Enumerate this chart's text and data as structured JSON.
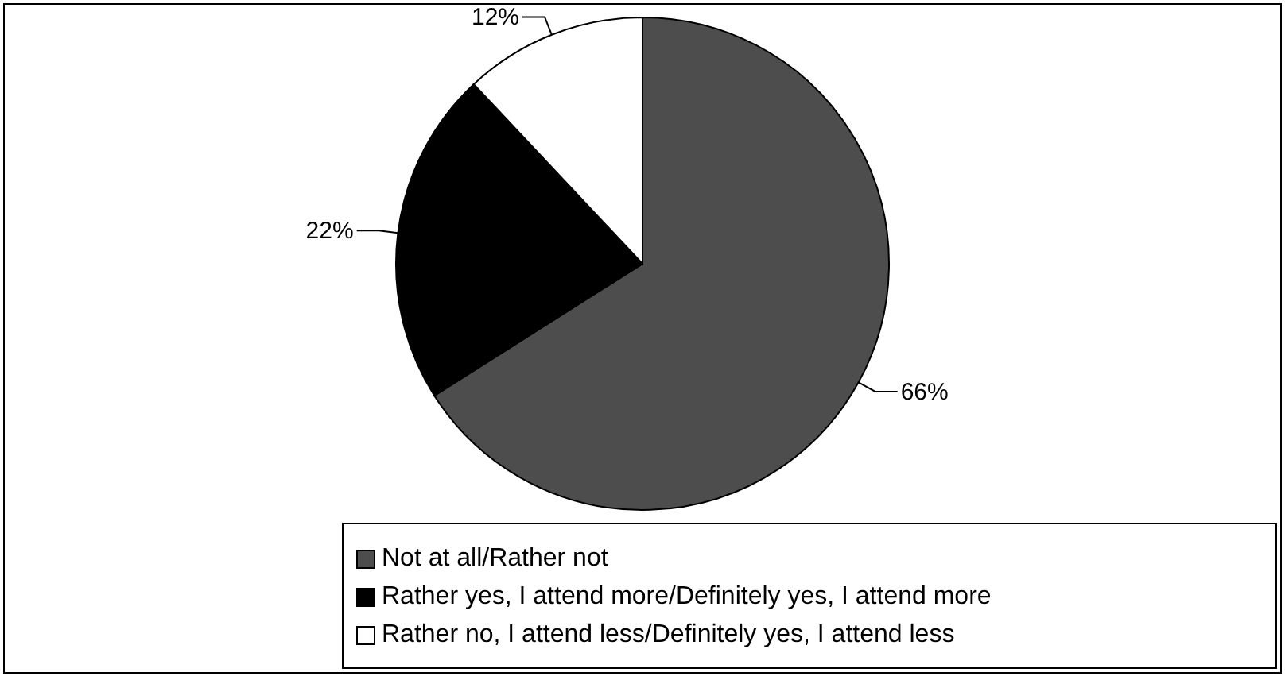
{
  "chart_data": {
    "type": "pie",
    "categories": [
      "Not at all/Rather not",
      "Rather yes, I attend more/Definitely yes, I attend more",
      "Rather no, I attend less/Definitely yes, I attend less"
    ],
    "values": [
      66,
      22,
      12
    ],
    "colors": [
      "#4d4d4d",
      "#000000",
      "#ffffff"
    ],
    "value_labels": [
      "66%",
      "22%",
      "12%"
    ],
    "legend": "bottom"
  }
}
